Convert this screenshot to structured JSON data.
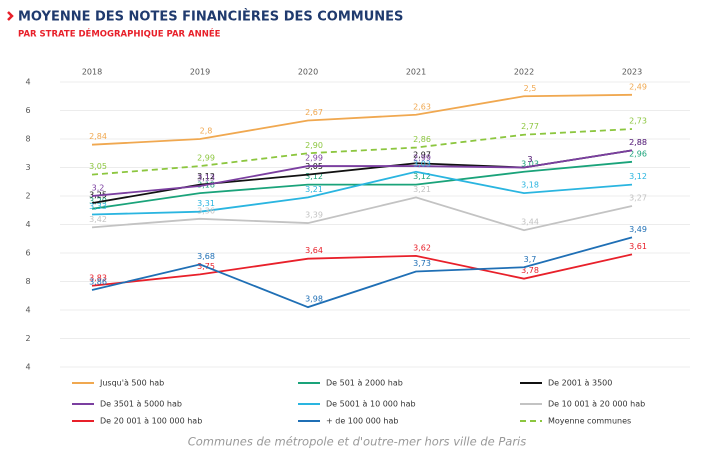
{
  "chart_data": {
    "type": "line",
    "title": "MOYENNE DES NOTES FINANCIÈRES DES COMMUNES",
    "subtitle": "PAR STRATE DÉMOGRAPHIQUE PAR ANNÉE",
    "footnote": "Communes de métropole et d'outre-mer hors ville de Paris",
    "categories": [
      "2018",
      "2019",
      "2020",
      "2021",
      "2022",
      "2023"
    ],
    "ylim": [
      2.4,
      4.4
    ],
    "y_reversed": true,
    "grid": true,
    "yticks": [
      {
        "value": 2.4,
        "label": "4"
      },
      {
        "value": 2.6,
        "label": "6"
      },
      {
        "value": 2.8,
        "label": "8"
      },
      3,
      {
        "value": 3.2,
        "label": "2"
      },
      {
        "value": 3.4,
        "label": "4"
      },
      {
        "value": 3.6,
        "label": "6"
      },
      {
        "value": 3.8,
        "label": "8"
      },
      {
        "value": 4,
        "label": "4"
      },
      {
        "value": 4.2,
        "label": "2"
      },
      {
        "value": 4.4,
        "label": "4"
      }
    ],
    "series": [
      {
        "name": "Jusqu'à 500 hab",
        "color": "#f0a850",
        "values": [
          2.84,
          2.8,
          2.67,
          2.63,
          2.5,
          2.49
        ],
        "value_labels": [
          "2,84",
          "2,8",
          "2,67",
          "2,63",
          "2,5",
          "2,49"
        ]
      },
      {
        "name": "De 501 à 2000 hab",
        "color": "#1aa37a",
        "values": [
          3.29,
          3.18,
          3.12,
          3.12,
          3.03,
          2.96
        ],
        "value_labels": [
          "3,29",
          "3,18",
          "3,12",
          "3,12",
          "3,03",
          "2,96"
        ]
      },
      {
        "name": "De 2001 à 3500",
        "color": "#111111",
        "values": [
          3.25,
          3.12,
          3.05,
          2.97,
          3,
          2.88
        ],
        "value_labels": [
          "3,25",
          "3,12",
          "3,05",
          "2,97",
          "3",
          "2,88"
        ]
      },
      {
        "name": "De 3501 à 5000 hab",
        "color": "#7b3fa0",
        "values": [
          3.2,
          3.13,
          2.99,
          2.99,
          3,
          2.88
        ],
        "value_labels": [
          "3,2",
          "3,13",
          "2,99",
          "2,99",
          "3",
          "2,88"
        ]
      },
      {
        "name": "De 5001 à 10 000 hab",
        "color": "#2ab5e0",
        "values": [
          3.33,
          3.31,
          3.21,
          3.03,
          3.18,
          3.12
        ],
        "value_labels": [
          "3,33",
          "3,31",
          "3,21",
          "3,03",
          "3,18",
          "3,12"
        ]
      },
      {
        "name": "De 10 001 à 20 000 hab",
        "color": "#c3c3c3",
        "values": [
          3.42,
          3.36,
          3.39,
          3.21,
          3.44,
          3.27
        ],
        "value_labels": [
          "3,42",
          "3,36",
          "3,39",
          "3,21",
          "3,44",
          "3,27"
        ]
      },
      {
        "name": "De 20 001 à 100 000 hab",
        "color": "#e8202a",
        "values": [
          3.83,
          3.75,
          3.64,
          3.62,
          3.78,
          3.61
        ],
        "value_labels": [
          "3,83",
          "3,75",
          "3,64",
          "3,62",
          "3,78",
          "3,61"
        ]
      },
      {
        "name": "+ de 100 000 hab",
        "color": "#1f6fb5",
        "values": [
          3.86,
          3.68,
          3.98,
          3.73,
          3.7,
          3.49
        ],
        "value_labels": [
          "3,86",
          "3,68",
          "3,98",
          "3,73",
          "3,7",
          "3,49"
        ]
      },
      {
        "name": "Moyenne communes",
        "color": "#8cc63f",
        "dashed": true,
        "values": [
          3.05,
          2.99,
          2.9,
          2.86,
          2.77,
          2.73
        ],
        "value_labels": [
          "3,05",
          "2,99",
          "2,90",
          "2,86",
          "2,77",
          "2,73"
        ]
      }
    ]
  }
}
